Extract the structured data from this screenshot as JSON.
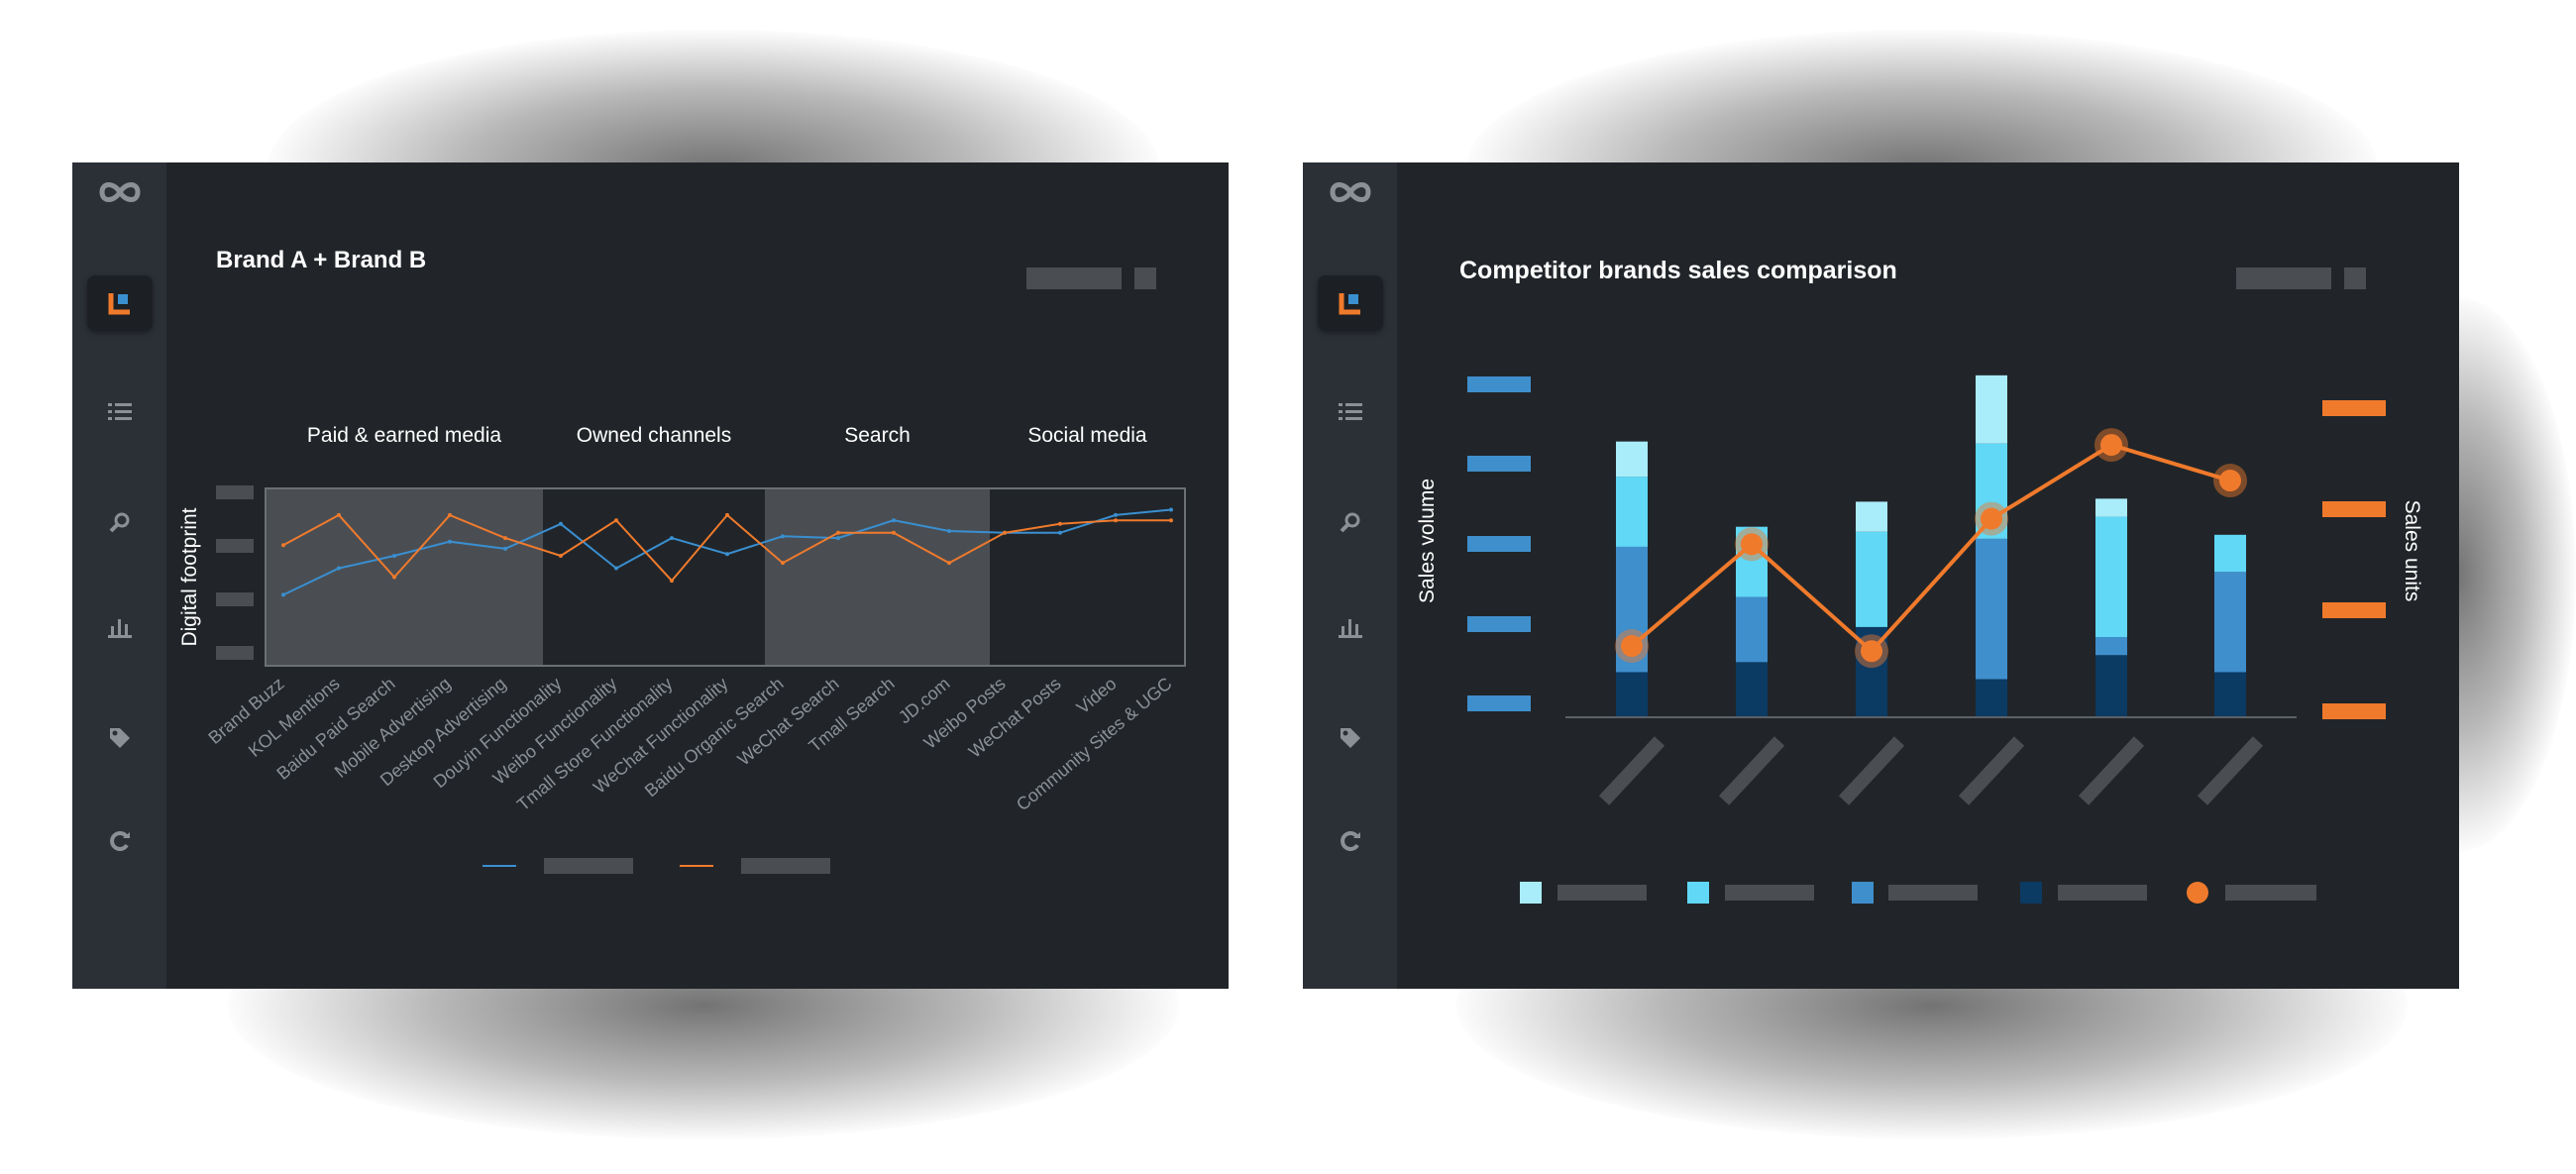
{
  "colors": {
    "background": "#ffffff",
    "panel": "#212529",
    "sidebar": "#2b3036",
    "placeholder": "#4a4e53",
    "blue_line": "#3a8fd0",
    "orange": "#f07a2c",
    "seg_light": "#a9ecfa",
    "seg_cyan": "#60d8f6",
    "seg_mid": "#3f8fcc",
    "seg_dark": "#0b3a63",
    "band_highlight": "#4a4e53"
  },
  "sidebar": {
    "items": [
      {
        "icon": "infinity-logo-icon"
      },
      {
        "icon": "dashboard-chart-icon",
        "active": true
      },
      {
        "icon": "list-icon"
      },
      {
        "icon": "search-icon"
      },
      {
        "icon": "bar-chart-icon"
      },
      {
        "icon": "tag-icon"
      },
      {
        "icon": "refresh-icon"
      }
    ]
  },
  "chart_data": [
    {
      "type": "line",
      "title": "Brand A + Brand B",
      "ylabel": "Digital footprint",
      "groups": [
        {
          "label": "Paid & earned media",
          "start": 0,
          "end": 5,
          "highlight": true
        },
        {
          "label": "Owned channels",
          "start": 6,
          "end": 9,
          "highlight": false
        },
        {
          "label": "Search",
          "start": 10,
          "end": 13,
          "highlight": true
        },
        {
          "label": "Social media",
          "start": 14,
          "end": 16,
          "highlight": false
        }
      ],
      "categories": [
        "Brand Buzz",
        "KOL Mentions",
        "Baidu Paid Search",
        "Mobile Advertising",
        "Desktop Advertising",
        "Douyin Functionality",
        "Weibo Functionality",
        "Tmall Store Functionality",
        "WeChat Functionality",
        "Baidu Organic Search",
        "WeChat Search",
        "Tmall Search",
        "JD.com",
        "Weibo Posts",
        "WeChat Posts",
        "Video",
        "Community Sites & UGC"
      ],
      "series": [
        {
          "color": "#3a8fd0",
          "values": [
            0.4,
            0.55,
            0.62,
            0.7,
            0.66,
            0.8,
            0.55,
            0.72,
            0.63,
            0.73,
            0.72,
            0.82,
            0.76,
            0.75,
            0.75,
            0.85,
            0.88
          ]
        },
        {
          "color": "#f07a2c",
          "values": [
            0.68,
            0.85,
            0.5,
            0.85,
            0.72,
            0.62,
            0.82,
            0.48,
            0.85,
            0.58,
            0.75,
            0.75,
            0.58,
            0.75,
            0.8,
            0.82,
            0.82
          ]
        }
      ],
      "ylim": [
        0,
        1
      ],
      "legend_placement": "bottom-center"
    },
    {
      "type": "bar",
      "stacked": true,
      "title": "Competitor brands sales comparison",
      "ylabel": "Sales volume",
      "y2label": "Sales units",
      "categories": [
        "",
        "",
        "",
        "",
        "",
        ""
      ],
      "stack_colors": [
        "#0b3a63",
        "#3f8fcc",
        "#60d8f6",
        "#a9ecfa"
      ],
      "series": [
        {
          "values": [
            45,
            55,
            90,
            38,
            62,
            45
          ]
        },
        {
          "values": [
            125,
            65,
            0,
            140,
            18,
            100
          ]
        },
        {
          "values": [
            70,
            70,
            95,
            95,
            120,
            37
          ]
        },
        {
          "values": [
            35,
            0,
            30,
            68,
            18,
            0
          ]
        }
      ],
      "line_series": {
        "color": "#f07a2c",
        "values": [
          0.28,
          0.68,
          0.26,
          0.78,
          1.07,
          0.93
        ]
      },
      "ylim": [
        0,
        330
      ],
      "y2lim": [
        0,
        1.3
      ],
      "legend_placement": "bottom-center"
    }
  ]
}
